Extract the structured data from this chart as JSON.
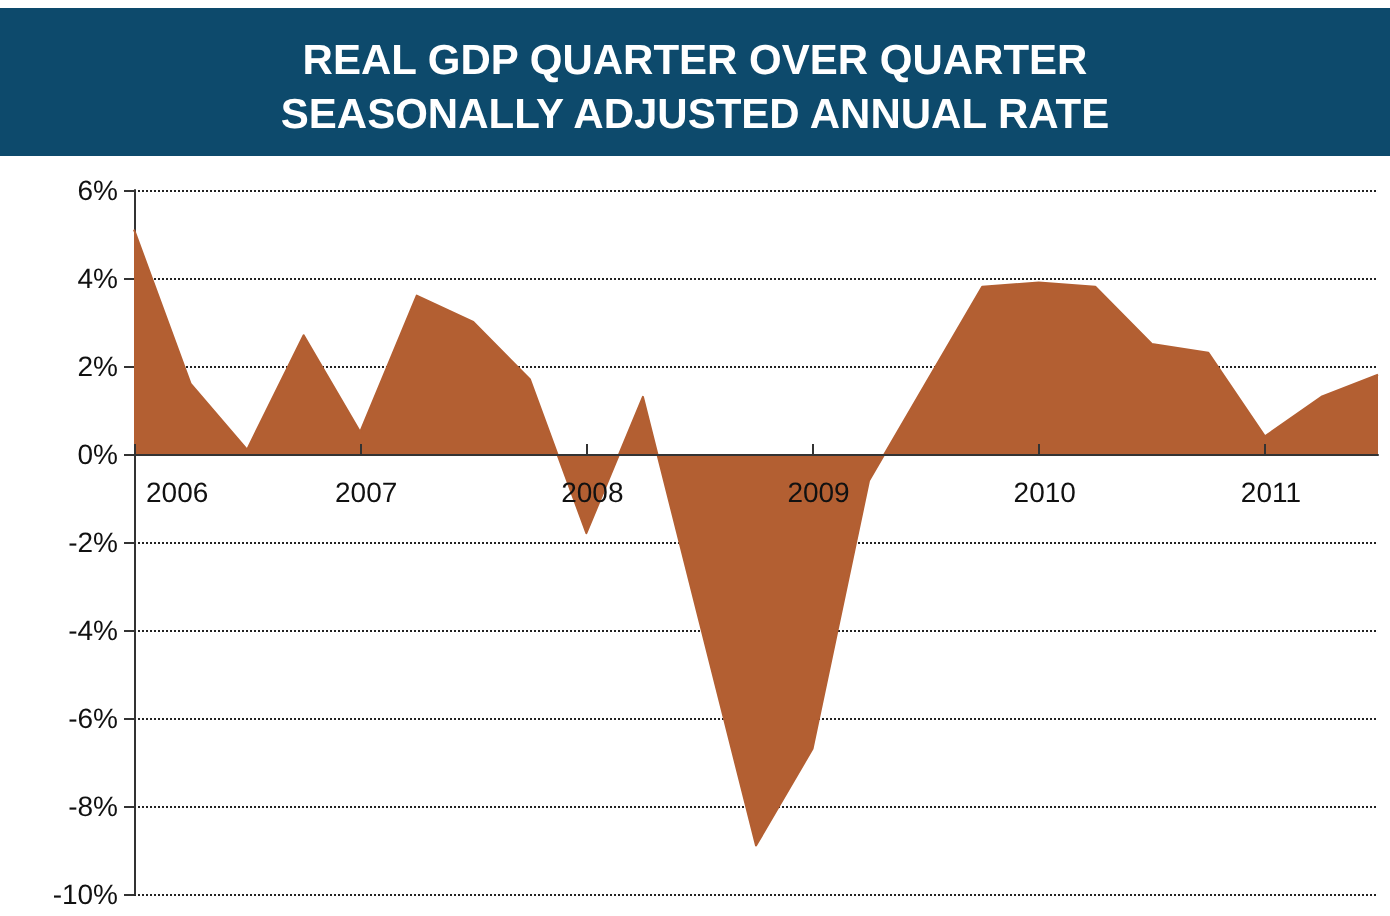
{
  "chart_data": {
    "type": "area",
    "title": "REAL GDP QUARTER OVER QUARTER\nSEASONALLY ADJUSTED ANNUAL RATE",
    "x": [
      2006,
      2006.25,
      2006.5,
      2006.75,
      2007,
      2007.25,
      2007.5,
      2007.75,
      2008,
      2008.25,
      2008.5,
      2008.75,
      2009,
      2009.25,
      2009.5,
      2009.75,
      2010,
      2010.25,
      2010.5,
      2010.75,
      2011,
      2011.25,
      2011.5
    ],
    "series": [
      {
        "color": "#b35f32",
        "values": [
          5.1,
          1.6,
          0.1,
          2.7,
          0.5,
          3.6,
          3.0,
          1.7,
          -1.8,
          1.3,
          -3.8,
          -8.9,
          -6.7,
          -0.6,
          1.6,
          3.8,
          3.9,
          3.8,
          2.5,
          2.3,
          0.4,
          1.3,
          1.8
        ]
      }
    ],
    "xlim": [
      2006,
      2011.5
    ],
    "xticks": [
      2006,
      2007,
      2008,
      2009,
      2010,
      2011
    ],
    "ylim": [
      -10,
      6
    ],
    "yticks": [
      {
        "value": -10,
        "label": "-10%"
      },
      {
        "value": -8,
        "label": "-8%"
      },
      {
        "value": -6,
        "label": "-6%"
      },
      {
        "value": -4,
        "label": "-4%"
      },
      {
        "value": -2,
        "label": "-2%"
      },
      {
        "value": 0,
        "label": "0%"
      },
      {
        "value": 2,
        "label": "2%"
      },
      {
        "value": 4,
        "label": "4%"
      },
      {
        "value": 6,
        "label": "6%"
      }
    ],
    "grid": "y",
    "marker": "none"
  }
}
